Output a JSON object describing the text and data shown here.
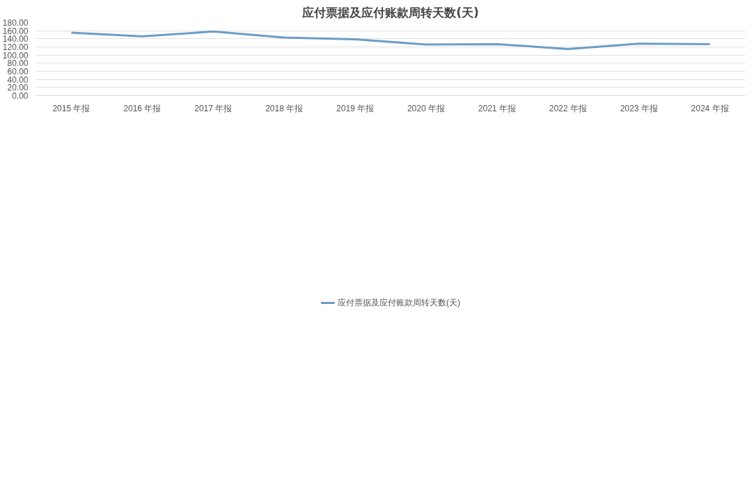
{
  "chart_data": {
    "type": "line",
    "title": "应付票据及应付账款周转天数(天)",
    "categories": [
      "2015 年报",
      "2016 年报",
      "2017 年报",
      "2018 年报",
      "2019 年报",
      "2020 年报",
      "2021 年报",
      "2022 年报",
      "2023 年报",
      "2024 年报"
    ],
    "series": [
      {
        "name": "应付票据及应付账款周转天数(天)",
        "color": "#6b9dc8",
        "values": [
          155,
          146,
          158,
          143,
          139,
          126,
          127,
          115,
          128,
          127
        ]
      }
    ],
    "ylim": [
      0,
      180
    ],
    "yticks": [
      {
        "value": 0,
        "label": "0.00"
      },
      {
        "value": 20,
        "label": "20.00"
      },
      {
        "value": 40,
        "label": "40.00"
      },
      {
        "value": 60,
        "label": "60.00"
      },
      {
        "value": 80,
        "label": "80.00"
      },
      {
        "value": 100,
        "label": "100.00"
      },
      {
        "value": 120,
        "label": "120.00"
      },
      {
        "value": 140,
        "label": "140.00"
      },
      {
        "value": 160,
        "label": "160.00"
      },
      {
        "value": 180,
        "label": "180.00"
      }
    ],
    "grid": "y",
    "legend": "bottom",
    "marker": "none",
    "line_style": "solid"
  }
}
